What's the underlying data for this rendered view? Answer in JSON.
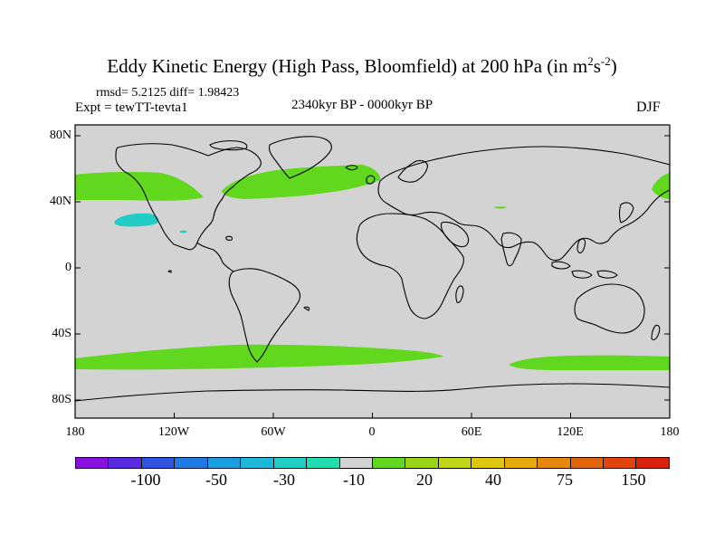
{
  "figure": {
    "title": "Eddy Kinetic Energy (High Pass, Bloomfield) at 200 hPa (in m",
    "title_sup1": "2",
    "title_mid": "s",
    "title_sup2": "-2",
    "title_end": ")",
    "stats": "rmsd= 5.2125 diff= 1.98423",
    "expt": "Expt = tewTT-tevta1",
    "period": "2340kyr BP - 0000kyr BP",
    "season": "DJF"
  },
  "axes": {
    "lat_labels": [
      "80N",
      "40N",
      "0",
      "40S",
      "80S"
    ],
    "lon_labels": [
      "180",
      "120W",
      "60W",
      "0",
      "60E",
      "120E",
      "180"
    ]
  },
  "colorbar": {
    "colors": [
      "#8a10e0",
      "#5a2be0",
      "#2e54e0",
      "#1f7be3",
      "#199ee0",
      "#1cb8d8",
      "#22cdc6",
      "#22dcb0",
      "#d3d3d3",
      "#61d81d",
      "#9ad317",
      "#bed617",
      "#dfc60f",
      "#e6aa0f",
      "#e4870c",
      "#e0650a",
      "#e0440c",
      "#da2110"
    ],
    "tick_labels": [
      "-100",
      "-50",
      "-30",
      "-10",
      "20",
      "40",
      "75",
      "150"
    ]
  },
  "map_data": {
    "background_color": "#d3d3d3",
    "positive_color": "#61d81d",
    "negative_color": "#22cdc6",
    "positive_regions": [
      "North Pacific storm track (east)",
      "North Atlantic storm track",
      "Southern Ocean storm track (west)",
      "Southern Ocean storm track (east)",
      "North Pacific storm track (west)"
    ],
    "negative_regions": [
      "Subtropical North Pacific"
    ]
  }
}
